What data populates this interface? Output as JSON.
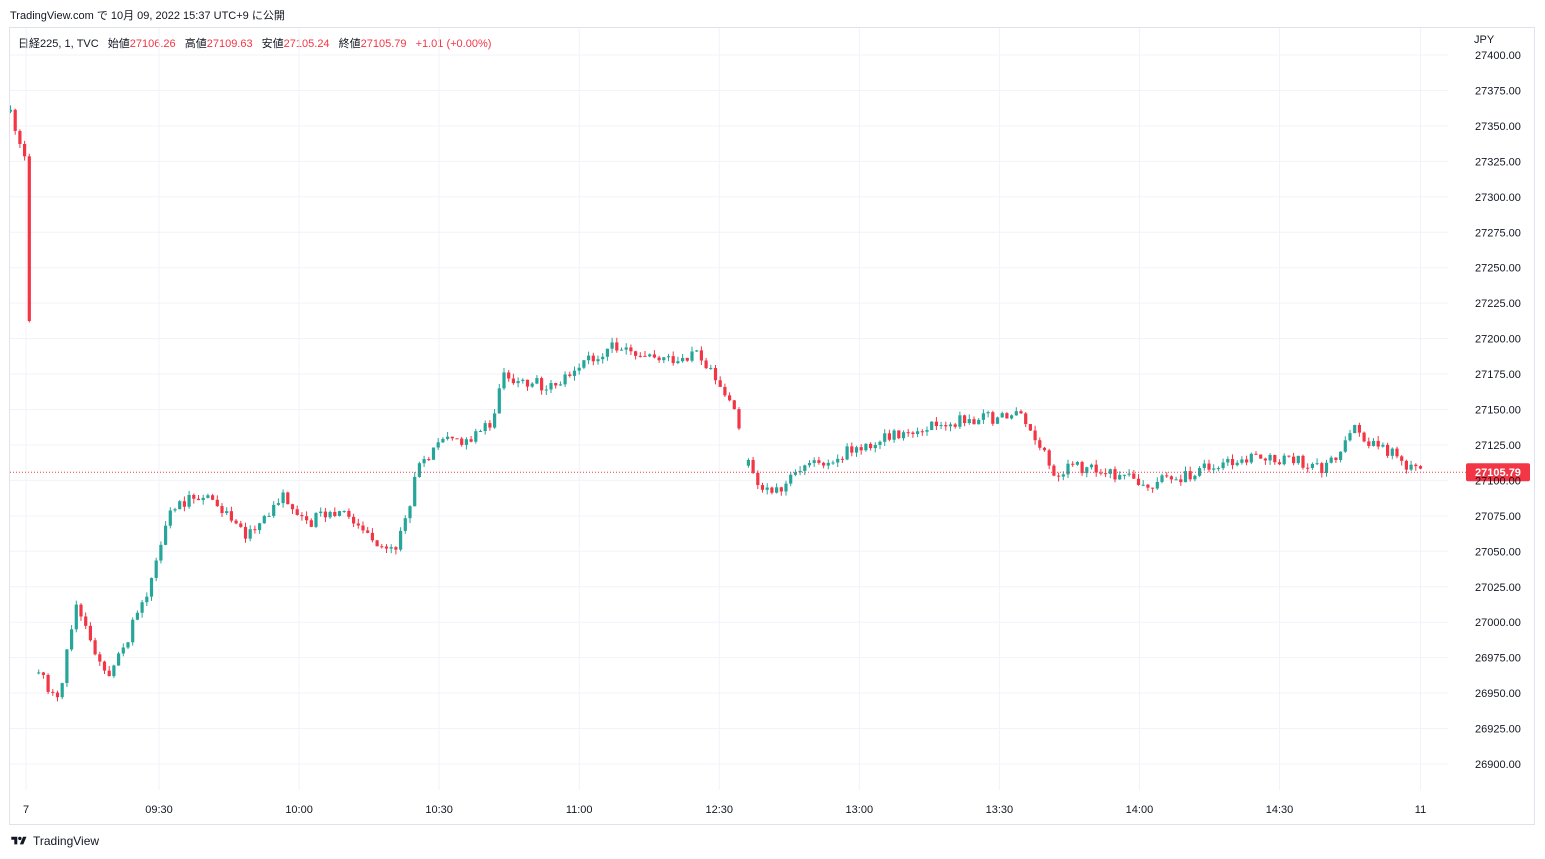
{
  "header": {
    "source": "TradingView.com",
    "published": "で 10月 09, 2022 15:37 UTC+9 に公開"
  },
  "legend": {
    "symbol": "日経225, 1, TVC",
    "open_label": "始値",
    "open_value": "27106.26",
    "high_label": "高値",
    "high_value": "27109.63",
    "low_label": "安値",
    "low_value": "27105.24",
    "close_label": "終値",
    "close_value": "27105.79",
    "change": "+1.01 (+0.00%)"
  },
  "currency": "JPY",
  "footer": {
    "brand": "TradingView"
  },
  "colors": {
    "up": "#26a69a",
    "down": "#f23645",
    "grid": "#f0f3fa",
    "last_price_line": "#f23645"
  },
  "chart_data": {
    "type": "candlestick",
    "title": "日経225, 1, TVC",
    "y_axis": {
      "side": "right",
      "unit": "JPY",
      "range": [
        26880,
        27405
      ],
      "ticks": [
        "27400.00",
        "27375.00",
        "27350.00",
        "27325.00",
        "27300.00",
        "27275.00",
        "27250.00",
        "27225.00",
        "27200.00",
        "27175.00",
        "27150.00",
        "27125.00",
        "27100.00",
        "27075.00",
        "27050.00",
        "27025.00",
        "27000.00",
        "26975.00",
        "26950.00",
        "26925.00",
        "26900.00"
      ],
      "tick_values": [
        27400,
        27375,
        27350,
        27325,
        27300,
        27275,
        27250,
        27225,
        27200,
        27175,
        27150,
        27125,
        27100,
        27075,
        27050,
        27025,
        27000,
        26975,
        26950,
        26925,
        26900
      ]
    },
    "x_axis": {
      "ticks": [
        "7",
        "09:30",
        "10:00",
        "10:30",
        "11:00",
        "12:30",
        "13:00",
        "13:30",
        "14:00",
        "14:30",
        "11"
      ],
      "tick_index": [
        3.3,
        31.6,
        61.4,
        91.2,
        121.0,
        150.8,
        180.6,
        210.4,
        240.2,
        270.0,
        300.0
      ]
    },
    "grid": true,
    "last_price": "27105.79",
    "last_price_value": 27105.79,
    "last_price_style": "dotted line with red label",
    "series_control_points": [
      {
        "i": 0,
        "close": 27360
      },
      {
        "i": 3,
        "close": 27330
      },
      {
        "i": 5,
        "break": true
      },
      {
        "i": 6,
        "close": 26965
      },
      {
        "i": 10,
        "close": 26945
      },
      {
        "i": 14,
        "close": 27010
      },
      {
        "i": 18,
        "close": 26980
      },
      {
        "i": 21,
        "close": 26960
      },
      {
        "i": 27,
        "close": 27005
      },
      {
        "i": 30,
        "close": 27030
      },
      {
        "i": 34,
        "close": 27080
      },
      {
        "i": 40,
        "close": 27090
      },
      {
        "i": 44,
        "close": 27085
      },
      {
        "i": 50,
        "close": 27060
      },
      {
        "i": 58,
        "close": 27090
      },
      {
        "i": 63,
        "close": 27070
      },
      {
        "i": 70,
        "close": 27080
      },
      {
        "i": 77,
        "close": 27060
      },
      {
        "i": 82,
        "close": 27050
      },
      {
        "i": 87,
        "close": 27110
      },
      {
        "i": 92,
        "close": 27128
      },
      {
        "i": 98,
        "close": 27130
      },
      {
        "i": 102,
        "close": 27140
      },
      {
        "i": 105,
        "close": 27175
      },
      {
        "i": 110,
        "close": 27170
      },
      {
        "i": 115,
        "close": 27165
      },
      {
        "i": 120,
        "close": 27180
      },
      {
        "i": 128,
        "close": 27195
      },
      {
        "i": 134,
        "close": 27185
      },
      {
        "i": 140,
        "close": 27185
      },
      {
        "i": 146,
        "close": 27190
      },
      {
        "i": 150,
        "close": 27170
      },
      {
        "i": 154,
        "close": 27150
      },
      {
        "i": 156,
        "break": true
      },
      {
        "i": 157,
        "close": 27110
      },
      {
        "i": 160,
        "close": 27095
      },
      {
        "i": 164,
        "close": 27095
      },
      {
        "i": 170,
        "close": 27110
      },
      {
        "i": 178,
        "close": 27120
      },
      {
        "i": 187,
        "close": 27130
      },
      {
        "i": 195,
        "close": 27138
      },
      {
        "i": 204,
        "close": 27143
      },
      {
        "i": 215,
        "close": 27145
      },
      {
        "i": 219,
        "close": 27125
      },
      {
        "i": 222,
        "close": 27105
      },
      {
        "i": 226,
        "close": 27110
      },
      {
        "i": 235,
        "close": 27105
      },
      {
        "i": 240,
        "close": 27098
      },
      {
        "i": 248,
        "close": 27100
      },
      {
        "i": 256,
        "close": 27110
      },
      {
        "i": 264,
        "close": 27115
      },
      {
        "i": 272,
        "close": 27115
      },
      {
        "i": 280,
        "close": 27108
      },
      {
        "i": 286,
        "close": 27135
      },
      {
        "i": 293,
        "close": 27120
      },
      {
        "i": 300,
        "close": 27106
      }
    ]
  }
}
